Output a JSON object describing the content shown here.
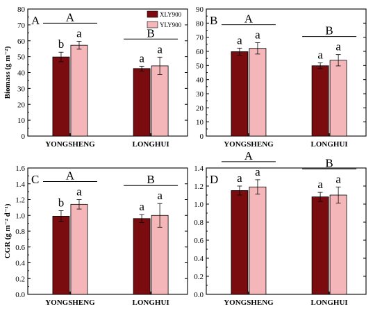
{
  "colors": {
    "XLY900": "#7a0c10",
    "YLY900": "#f4b6b8"
  },
  "legend": [
    "XLY900",
    "YLY900"
  ],
  "chart_data": [
    {
      "type": "bar",
      "panel": "A",
      "ylabel": "Biomass (g m⁻²)",
      "ylim": [
        0,
        80
      ],
      "yticks": [
        "0",
        "10",
        "20",
        "30",
        "40",
        "50",
        "60",
        "70",
        "80"
      ],
      "categories": [
        "YONGSHENG",
        "LONGHUI"
      ],
      "series": [
        {
          "name": "XLY900",
          "values": [
            49.8,
            42.5
          ],
          "errors": [
            3,
            1.5
          ],
          "letters": [
            "b",
            "a"
          ]
        },
        {
          "name": "YLY900",
          "values": [
            57.2,
            44.2
          ],
          "errors": [
            2.5,
            5.5
          ],
          "letters": [
            "a",
            "a"
          ]
        }
      ],
      "group_letters": [
        "A",
        "B"
      ]
    },
    {
      "type": "bar",
      "panel": "B",
      "ylabel": "",
      "ylim": [
        0,
        90
      ],
      "yticks": [
        "0",
        "10",
        "20",
        "30",
        "40",
        "50",
        "60",
        "70",
        "80",
        "90"
      ],
      "categories": [
        "YONGSHENG",
        "LONGHUI"
      ],
      "series": [
        {
          "name": "XLY900",
          "values": [
            59.8,
            49.8
          ],
          "errors": [
            2.5,
            2
          ],
          "letters": [
            "a",
            "a"
          ]
        },
        {
          "name": "YLY900",
          "values": [
            62.1,
            53.7
          ],
          "errors": [
            4,
            4
          ],
          "letters": [
            "a",
            "a"
          ]
        }
      ],
      "group_letters": [
        "A",
        "B"
      ]
    },
    {
      "type": "bar",
      "panel": "C",
      "ylabel": "CGR (g m⁻² d⁻¹)",
      "ylim": [
        0,
        1.6
      ],
      "yticks": [
        "0.0",
        "0.2",
        "0.4",
        "0.6",
        "0.8",
        "1.0",
        "1.2",
        "1.4",
        "1.6"
      ],
      "categories": [
        "YONGSHENG",
        "LONGHUI"
      ],
      "series": [
        {
          "name": "XLY900",
          "values": [
            0.99,
            0.96
          ],
          "errors": [
            0.07,
            0.05
          ],
          "letters": [
            "b",
            "a"
          ]
        },
        {
          "name": "YLY900",
          "values": [
            1.14,
            1.0
          ],
          "errors": [
            0.06,
            0.15
          ],
          "letters": [
            "a",
            "a"
          ]
        }
      ],
      "group_letters": [
        "A",
        "B"
      ]
    },
    {
      "type": "bar",
      "panel": "D",
      "ylabel": "",
      "ylim": [
        0,
        1.4
      ],
      "yticks": [
        "0.0",
        "0.2",
        "0.4",
        "0.6",
        "0.8",
        "1.0",
        "1.2",
        "1.4"
      ],
      "categories": [
        "YONGSHENG",
        "LONGHUI"
      ],
      "series": [
        {
          "name": "XLY900",
          "values": [
            1.15,
            1.08
          ],
          "errors": [
            0.05,
            0.05
          ],
          "letters": [
            "a",
            "a"
          ]
        },
        {
          "name": "YLY900",
          "values": [
            1.19,
            1.1
          ],
          "errors": [
            0.08,
            0.09
          ],
          "letters": [
            "a",
            "a"
          ]
        }
      ],
      "group_letters": [
        "A",
        "B"
      ]
    }
  ]
}
